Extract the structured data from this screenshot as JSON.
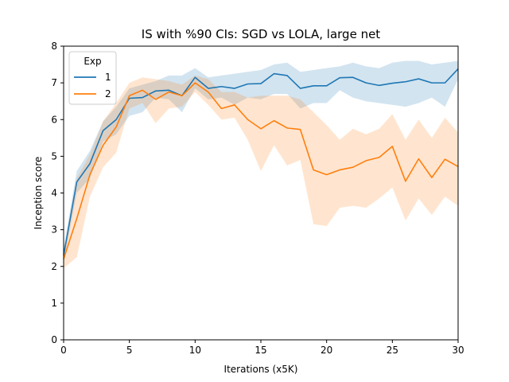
{
  "chart_data": {
    "type": "line",
    "title": "IS with %90 CIs: SGD vs LOLA, large net",
    "xlabel": "Iterations (x5K)",
    "ylabel": "Inception score",
    "xlim": [
      0,
      30
    ],
    "ylim": [
      0,
      8
    ],
    "xticks": [
      0,
      5,
      10,
      15,
      20,
      25,
      30
    ],
    "yticks": [
      0,
      1,
      2,
      3,
      4,
      5,
      6,
      7,
      8
    ],
    "grid": false,
    "legend": {
      "title": "Exp",
      "placement": "upper-left"
    },
    "x": [
      0,
      1,
      2,
      3,
      4,
      5,
      6,
      7,
      8,
      9,
      10,
      11,
      12,
      13,
      14,
      15,
      16,
      17,
      18,
      19,
      20,
      21,
      22,
      23,
      24,
      25,
      26,
      27,
      28,
      29,
      30
    ],
    "series": [
      {
        "name": "1",
        "color": "#1f77b4",
        "values": [
          2.3,
          4.3,
          4.8,
          5.7,
          6.0,
          6.58,
          6.6,
          6.78,
          6.8,
          6.65,
          7.15,
          6.85,
          6.9,
          6.85,
          6.97,
          6.98,
          7.25,
          7.2,
          6.85,
          6.92,
          6.92,
          7.14,
          7.15,
          7.0,
          6.93,
          6.99,
          7.03,
          7.11,
          7.0,
          7.0,
          7.38
        ],
        "ci_lower": [
          2.1,
          4.0,
          4.4,
          5.4,
          5.6,
          6.1,
          6.2,
          6.6,
          6.55,
          6.2,
          6.85,
          6.55,
          6.6,
          6.4,
          6.6,
          6.55,
          6.7,
          6.7,
          6.3,
          6.45,
          6.45,
          6.8,
          6.6,
          6.5,
          6.45,
          6.4,
          6.35,
          6.45,
          6.6,
          6.35,
          7.1
        ],
        "ci_upper": [
          2.5,
          4.6,
          5.15,
          5.95,
          6.35,
          6.85,
          6.95,
          7.05,
          7.2,
          7.2,
          7.4,
          7.15,
          7.2,
          7.25,
          7.3,
          7.35,
          7.5,
          7.55,
          7.3,
          7.35,
          7.4,
          7.45,
          7.55,
          7.45,
          7.4,
          7.55,
          7.6,
          7.6,
          7.5,
          7.55,
          7.6
        ]
      },
      {
        "name": "2",
        "color": "#ff7f0e",
        "values": [
          2.2,
          3.3,
          4.5,
          5.3,
          5.8,
          6.65,
          6.8,
          6.55,
          6.75,
          6.65,
          7.0,
          6.75,
          6.3,
          6.4,
          6.0,
          5.75,
          5.97,
          5.77,
          5.73,
          4.63,
          4.5,
          4.63,
          4.7,
          4.88,
          4.97,
          5.27,
          4.32,
          4.93,
          4.42,
          4.92,
          4.72
        ],
        "ci_lower": [
          1.95,
          2.25,
          3.9,
          4.7,
          5.1,
          6.3,
          6.45,
          5.9,
          6.3,
          6.35,
          6.75,
          6.4,
          6.0,
          6.05,
          5.45,
          4.6,
          5.3,
          4.75,
          4.9,
          3.15,
          3.1,
          3.6,
          3.65,
          3.6,
          3.85,
          4.15,
          3.25,
          3.85,
          3.4,
          3.9,
          3.65
        ],
        "ci_upper": [
          2.4,
          4.4,
          5.05,
          5.95,
          6.45,
          7.0,
          7.15,
          7.1,
          7.05,
          6.95,
          7.2,
          7.1,
          6.75,
          6.75,
          6.6,
          6.65,
          6.65,
          6.65,
          6.55,
          6.2,
          5.85,
          5.45,
          5.75,
          5.6,
          5.75,
          6.15,
          5.45,
          6.0,
          5.5,
          6.05,
          5.65
        ]
      }
    ]
  }
}
